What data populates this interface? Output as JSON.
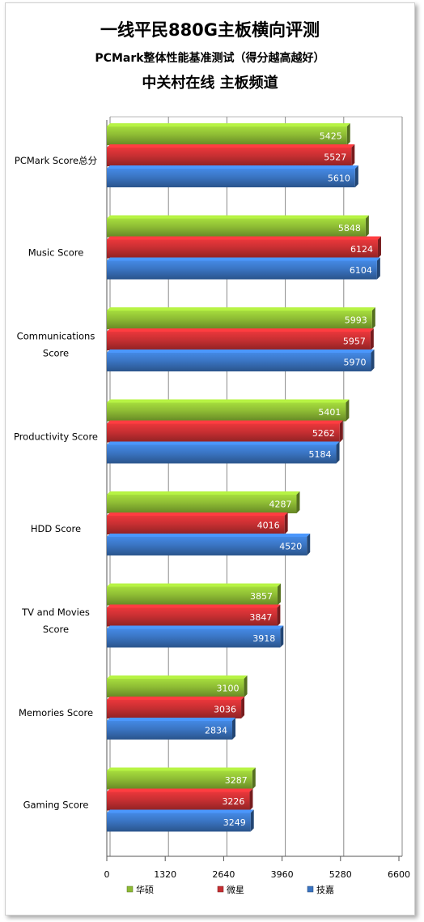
{
  "titles": {
    "line1": "一线平民880G主板横向评测",
    "line2": "PCMark整体性能基准测试（得分越高越好）",
    "line3": "中关村在线 主板频道"
  },
  "colors": {
    "series": [
      "#8dbb34",
      "#c62f32",
      "#3a74c2"
    ],
    "grid": "#8a8a8a",
    "axis": "#555555"
  },
  "chart_data": {
    "type": "bar",
    "orientation": "horizontal",
    "categories": [
      "PCMark Score总分",
      "Music Score",
      "Communications Score",
      "Productivity Score",
      "HDD Score",
      "TV and Movies Score",
      "Memories Score",
      "Gaming Score"
    ],
    "category_lines": [
      [
        "PCMark Score总分"
      ],
      [
        "Music Score"
      ],
      [
        "Communications",
        "Score"
      ],
      [
        "Productivity Score"
      ],
      [
        "HDD Score"
      ],
      [
        "TV and Movies",
        "Score"
      ],
      [
        "Memories Score"
      ],
      [
        "Gaming Score"
      ]
    ],
    "series": [
      {
        "name": "华硕",
        "values": [
          5425,
          5848,
          5993,
          5401,
          4287,
          3857,
          3100,
          3287
        ]
      },
      {
        "name": "微星",
        "values": [
          5527,
          6124,
          5957,
          5262,
          4016,
          3847,
          3036,
          3226
        ]
      },
      {
        "name": "技嘉",
        "values": [
          5610,
          6104,
          5970,
          5184,
          4520,
          3918,
          2834,
          3249
        ]
      }
    ],
    "xlim": [
      0,
      6600
    ],
    "xticks": [
      "0",
      "1320",
      "2640",
      "3960",
      "5280",
      "6600"
    ],
    "grid": true,
    "legend_position": "bottom"
  }
}
